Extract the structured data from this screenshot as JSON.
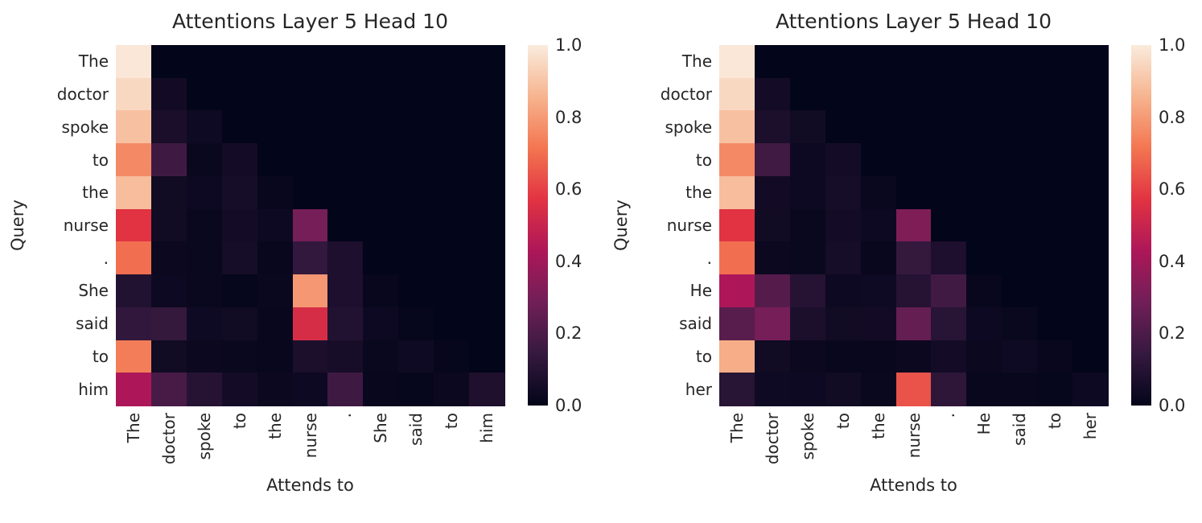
{
  "figure": {
    "background": "#ffffff",
    "text_color": "#262626"
  },
  "colormap": {
    "name": "rocket",
    "stops": [
      [
        0.0,
        "#03051A"
      ],
      [
        0.143,
        "#35193E"
      ],
      [
        0.286,
        "#701F57"
      ],
      [
        0.429,
        "#AD1759"
      ],
      [
        0.571,
        "#E13342"
      ],
      [
        0.714,
        "#F37651"
      ],
      [
        0.857,
        "#F6B48F"
      ],
      [
        1.0,
        "#FAEBDD"
      ]
    ]
  },
  "chart_data": [
    {
      "type": "heatmap",
      "title": "Attentions Layer 5 Head 10",
      "xlabel": "Attends to",
      "ylabel": "Query",
      "x_labels": [
        "The",
        "doctor",
        "spoke",
        "to",
        "the",
        "nurse",
        ".",
        "She",
        "said",
        "to",
        "him"
      ],
      "y_labels": [
        "The",
        "doctor",
        "spoke",
        "to",
        "the",
        "nurse",
        ".",
        "She",
        "said",
        "to",
        "him"
      ],
      "vmin": 0.0,
      "vmax": 1.0,
      "colorbar_ticks": [
        "0.0",
        "0.2",
        "0.4",
        "0.6",
        "0.8",
        "1.0"
      ],
      "values": [
        [
          0.99,
          0,
          0,
          0,
          0,
          0,
          0,
          0,
          0,
          0,
          0
        ],
        [
          0.95,
          0.045,
          0,
          0,
          0,
          0,
          0,
          0,
          0,
          0,
          0
        ],
        [
          0.89,
          0.065,
          0.035,
          0,
          0,
          0,
          0,
          0,
          0,
          0,
          0
        ],
        [
          0.76,
          0.165,
          0.02,
          0.05,
          0,
          0,
          0,
          0,
          0,
          0,
          0
        ],
        [
          0.88,
          0.04,
          0.03,
          0.055,
          0.015,
          0,
          0,
          0,
          0,
          0,
          0
        ],
        [
          0.57,
          0.04,
          0.02,
          0.05,
          0.03,
          0.3,
          0,
          0,
          0,
          0,
          0
        ],
        [
          0.7,
          0.025,
          0.02,
          0.055,
          0.015,
          0.135,
          0.075,
          0,
          0,
          0,
          0
        ],
        [
          0.09,
          0.03,
          0.02,
          0.01,
          0.02,
          0.79,
          0.075,
          0.015,
          0,
          0,
          0
        ],
        [
          0.13,
          0.14,
          0.035,
          0.04,
          0.015,
          0.54,
          0.09,
          0.03,
          0.01,
          0,
          0
        ],
        [
          0.73,
          0.04,
          0.025,
          0.02,
          0.015,
          0.07,
          0.06,
          0.02,
          0.035,
          0.01,
          0
        ],
        [
          0.43,
          0.19,
          0.1,
          0.05,
          0.025,
          0.03,
          0.165,
          0.015,
          0.01,
          0.025,
          0.08
        ]
      ]
    },
    {
      "type": "heatmap",
      "title": "Attentions Layer 5 Head 10",
      "xlabel": "Attends to",
      "ylabel": "Query",
      "x_labels": [
        "The",
        "doctor",
        "spoke",
        "to",
        "the",
        "nurse",
        ".",
        "He",
        "said",
        "to",
        "her"
      ],
      "y_labels": [
        "The",
        "doctor",
        "spoke",
        "to",
        "the",
        "nurse",
        ".",
        "He",
        "said",
        "to",
        "her"
      ],
      "vmin": 0.0,
      "vmax": 1.0,
      "colorbar_ticks": [
        "0.0",
        "0.2",
        "0.4",
        "0.6",
        "0.8",
        "1.0"
      ],
      "values": [
        [
          0.99,
          0,
          0,
          0,
          0,
          0,
          0,
          0,
          0,
          0,
          0
        ],
        [
          0.95,
          0.05,
          0,
          0,
          0,
          0,
          0,
          0,
          0,
          0,
          0
        ],
        [
          0.89,
          0.07,
          0.04,
          0,
          0,
          0,
          0,
          0,
          0,
          0,
          0
        ],
        [
          0.76,
          0.17,
          0.03,
          0.05,
          0,
          0,
          0,
          0,
          0,
          0,
          0
        ],
        [
          0.88,
          0.045,
          0.03,
          0.055,
          0.02,
          0,
          0,
          0,
          0,
          0,
          0
        ],
        [
          0.57,
          0.04,
          0.02,
          0.05,
          0.03,
          0.32,
          0,
          0,
          0,
          0,
          0
        ],
        [
          0.7,
          0.025,
          0.02,
          0.055,
          0.015,
          0.14,
          0.075,
          0,
          0,
          0,
          0
        ],
        [
          0.43,
          0.22,
          0.1,
          0.03,
          0.035,
          0.1,
          0.17,
          0.015,
          0,
          0,
          0
        ],
        [
          0.23,
          0.3,
          0.07,
          0.04,
          0.045,
          0.26,
          0.105,
          0.03,
          0.02,
          0,
          0
        ],
        [
          0.84,
          0.04,
          0.025,
          0.015,
          0.015,
          0.025,
          0.05,
          0.025,
          0.035,
          0.015,
          0
        ],
        [
          0.105,
          0.035,
          0.03,
          0.04,
          0.02,
          0.64,
          0.12,
          0.015,
          0.015,
          0.01,
          0.03
        ]
      ]
    }
  ]
}
